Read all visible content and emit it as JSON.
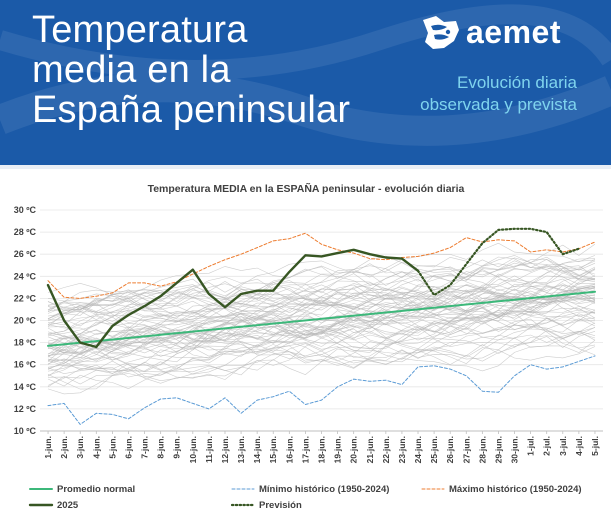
{
  "header": {
    "title_lines": [
      "Temperatura",
      "media en la",
      "España peninsular"
    ],
    "brand": "aemet",
    "subtitle_lines": [
      "Evolución diaria",
      "observada y prevista"
    ]
  },
  "chart_data": {
    "type": "line",
    "title": "Temperatura MEDIA en la ESPAÑA peninsular - evolución diaria",
    "xlabel": "",
    "ylabel": "",
    "ylim": [
      10,
      30
    ],
    "ytick_values": [
      10,
      12,
      14,
      16,
      18,
      20,
      22,
      24,
      26,
      28,
      30
    ],
    "ytick_labels": [
      "10 ºC",
      "12 ºC",
      "14 ºC",
      "16 ºC",
      "18 ºC",
      "20 ºC",
      "22 ºC",
      "24 ºC",
      "26 ºC",
      "28 ºC",
      "30 ºC"
    ],
    "grid": true,
    "legend_position": "bottom",
    "categories": [
      "1-jun.",
      "2-jun.",
      "3-jun.",
      "4-jun.",
      "5-jun.",
      "6-jun.",
      "7-jun.",
      "8-jun.",
      "9-jun.",
      "10-jun.",
      "11-jun.",
      "12-jun.",
      "13-jun.",
      "14-jun.",
      "15-jun.",
      "16-jun.",
      "17-jun.",
      "18-jun.",
      "19-jun.",
      "20-jun.",
      "21-jun.",
      "22-jun.",
      "23-jun.",
      "24-jun.",
      "25-jun.",
      "26-jun.",
      "27-jun.",
      "28-jun.",
      "29-jun.",
      "30-jun.",
      "1-jul.",
      "2-jul.",
      "3-jul.",
      "4-jul.",
      "5-jul."
    ],
    "series": [
      {
        "name": "Promedio normal",
        "color": "#3cb87a",
        "style": "solid",
        "x": [
          "1-jun.",
          "5-jul."
        ],
        "values": [
          17.7,
          22.6
        ]
      },
      {
        "name": "Mínimo histórico (1950-2024)",
        "color": "#5b9bd5",
        "style": "dashed",
        "x": [
          "1-jun.",
          "2-jun.",
          "3-jun.",
          "4-jun.",
          "5-jun.",
          "6-jun.",
          "7-jun.",
          "8-jun.",
          "9-jun.",
          "10-jun.",
          "11-jun.",
          "12-jun.",
          "13-jun.",
          "14-jun.",
          "15-jun.",
          "16-jun.",
          "17-jun.",
          "18-jun.",
          "19-jun.",
          "20-jun.",
          "21-jun.",
          "22-jun.",
          "23-jun.",
          "24-jun.",
          "25-jun.",
          "26-jun.",
          "27-jun.",
          "28-jun.",
          "29-jun.",
          "30-jun.",
          "1-jul.",
          "2-jul.",
          "3-jul.",
          "4-jul.",
          "5-jul."
        ],
        "values": [
          12.3,
          12.5,
          10.6,
          11.6,
          11.5,
          11.1,
          12.1,
          12.9,
          13.0,
          12.5,
          12.0,
          13.0,
          11.6,
          12.8,
          13.1,
          13.6,
          12.4,
          12.8,
          14.0,
          14.7,
          14.5,
          14.6,
          14.2,
          15.8,
          15.9,
          15.6,
          15.0,
          13.6,
          13.5,
          15.0,
          16.0,
          15.6,
          15.8,
          16.3,
          16.8
        ]
      },
      {
        "name": "Máximo histórico (1950-2024)",
        "color": "#ed7d31",
        "style": "dashed",
        "x": [
          "1-jun.",
          "2-jun.",
          "3-jun.",
          "4-jun.",
          "5-jun.",
          "6-jun.",
          "7-jun.",
          "8-jun.",
          "9-jun.",
          "10-jun.",
          "11-jun.",
          "12-jun.",
          "13-jun.",
          "14-jun.",
          "15-jun.",
          "16-jun.",
          "17-jun.",
          "18-jun.",
          "19-jun.",
          "20-jun.",
          "21-jun.",
          "22-jun.",
          "23-jun.",
          "24-jun.",
          "25-jun.",
          "26-jun.",
          "27-jun.",
          "28-jun.",
          "29-jun.",
          "30-jun.",
          "1-jul.",
          "2-jul.",
          "3-jul.",
          "4-jul.",
          "5-jul."
        ],
        "values": [
          23.6,
          22.1,
          22.0,
          22.2,
          22.5,
          23.4,
          23.4,
          23.1,
          23.5,
          24.2,
          24.9,
          25.5,
          26.0,
          26.6,
          27.2,
          27.4,
          27.9,
          26.9,
          26.4,
          26.1,
          25.6,
          25.5,
          25.7,
          25.8,
          26.1,
          26.6,
          27.5,
          27.1,
          27.3,
          27.2,
          26.2,
          26.4,
          26.2,
          26.5,
          27.1
        ]
      },
      {
        "name": "2025",
        "color": "#375623",
        "style": "solid",
        "x": [
          "1-jun.",
          "2-jun.",
          "3-jun.",
          "4-jun.",
          "5-jun.",
          "6-jun.",
          "7-jun.",
          "8-jun.",
          "9-jun.",
          "10-jun.",
          "11-jun.",
          "12-jun.",
          "13-jun.",
          "14-jun.",
          "15-jun.",
          "16-jun.",
          "17-jun.",
          "18-jun.",
          "19-jun.",
          "20-jun.",
          "21-jun.",
          "22-jun.",
          "23-jun.",
          "24-jun."
        ],
        "values": [
          23.2,
          20.0,
          18.0,
          17.6,
          19.5,
          20.5,
          21.3,
          22.2,
          23.4,
          24.6,
          22.4,
          21.2,
          22.4,
          22.7,
          22.7,
          24.4,
          25.9,
          25.8,
          26.1,
          26.4,
          26.0,
          25.7,
          25.6,
          24.5
        ]
      },
      {
        "name": "Previsión",
        "color": "#375623",
        "style": "dotted",
        "x": [
          "24-jun.",
          "25-jun.",
          "26-jun.",
          "27-jun.",
          "28-jun.",
          "29-jun.",
          "30-jun.",
          "1-jul.",
          "2-jul.",
          "3-jul.",
          "4-jul."
        ],
        "values": [
          24.5,
          22.3,
          23.2,
          25.1,
          27.0,
          28.2,
          28.3,
          28.3,
          28.0,
          26.0,
          26.5
        ]
      }
    ]
  }
}
